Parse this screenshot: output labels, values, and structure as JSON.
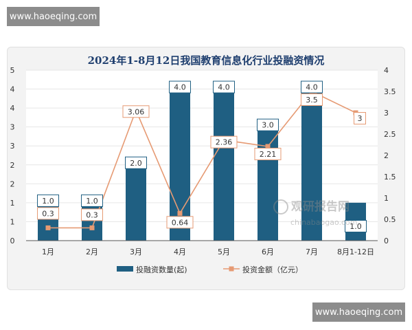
{
  "watermark_top": "www.haoeqing.com",
  "watermark_bottom": "www.haoeqing.com",
  "chart_data": {
    "type": "bar",
    "title": "2024年1-8月12日我国教育信息化行业投融资情况",
    "categories": [
      "1月",
      "2月",
      "3月",
      "4月",
      "5月",
      "6月",
      "7月",
      "8月1-12日"
    ],
    "series": [
      {
        "name": "投融资数量(起)",
        "type": "bar",
        "axis": "left",
        "color": "#1f5f82",
        "values": [
          1,
          1,
          2,
          4,
          4,
          3,
          4,
          1
        ],
        "labels": [
          "1.0",
          "1.0",
          "2.0",
          "4.0",
          "4.0",
          "3.0",
          "4.0",
          "1.0"
        ]
      },
      {
        "name": "投资金额（亿元）",
        "type": "line",
        "axis": "right",
        "color": "#e69a73",
        "values": [
          0.3,
          0.3,
          3.06,
          0.64,
          2.36,
          2.21,
          3.5,
          3
        ],
        "labels": [
          "0.3",
          "0.3",
          "3.06",
          "0.64",
          "2.36",
          "2.21",
          "3.5",
          "3"
        ]
      }
    ],
    "y_left": {
      "ticks": [
        "0",
        "1",
        "1",
        "2",
        "2",
        "3",
        "3",
        "4",
        "4",
        "5"
      ],
      "ylim": [
        0,
        4.5
      ]
    },
    "y_right": {
      "ticks": [
        "0",
        "0.5",
        "1",
        "1.5",
        "2",
        "2.5",
        "3",
        "3.5",
        "4"
      ],
      "ylim": [
        0,
        4
      ]
    },
    "legend_position": "bottom",
    "grid": true
  },
  "source_watermark": {
    "name": "观研报告网",
    "url": "chinabaogao.com"
  }
}
